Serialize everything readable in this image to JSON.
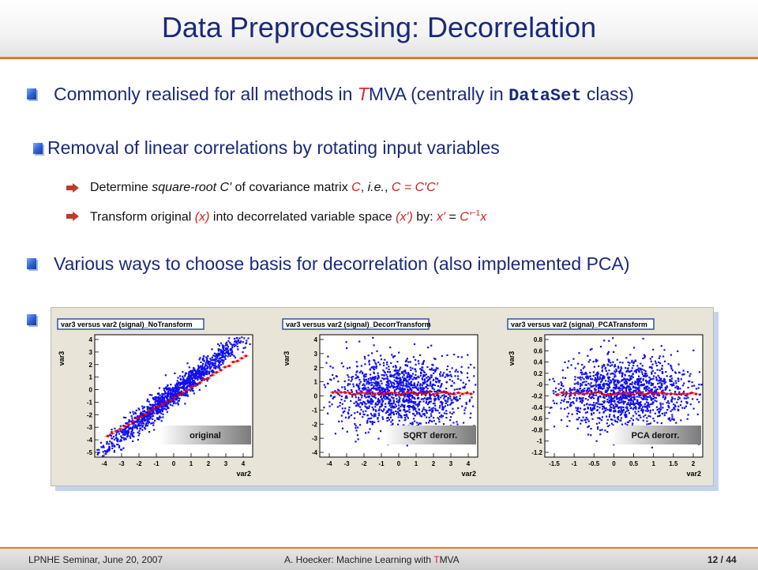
{
  "title": "Data Preprocessing: Decorrelation",
  "bullets": {
    "b1": {
      "pre": "Commonly realised for all methods in ",
      "t_red": "T",
      "mid": "MVA (centrally in ",
      "code": "DataSet",
      "post": " class)"
    },
    "b2": "Removal of linear correlations by rotating input variables",
    "sub1": {
      "a": "Determine ",
      "b": "square-root C′",
      "c": " of covariance matrix ",
      "d": "C",
      "e": ", ",
      "f": "i.e.",
      "g": ", ",
      "h": "C = C′C′"
    },
    "sub2": {
      "a": "Transform original ",
      "b": "(x)",
      "c": " into decorrelated variable space ",
      "d": "(x′)",
      "e": " by: ",
      "f": "x′",
      "g": " = ",
      "h": "C′",
      "sup": "−1",
      "i": "x"
    },
    "b3": "Various ways to choose basis for decorrelation (also implemented PCA)"
  },
  "plots": [
    {
      "title": "var3 versus var2 (signal)_NoTransform",
      "ylabel": "var3",
      "xlabel": "var2",
      "badge": "original",
      "yticks": [
        "4",
        "3",
        "2",
        "1",
        "0",
        "-1",
        "-2",
        "-3",
        "-4",
        "-5"
      ],
      "xticks": [
        "-4",
        "-3",
        "-2",
        "-1",
        "0",
        "1",
        "2",
        "3",
        "4"
      ],
      "kind": "correlated"
    },
    {
      "title": "var3 versus var2 (signal)_DecorrTransform",
      "ylabel": "var3",
      "xlabel": "var2",
      "badge": "SQRT derorr.",
      "yticks": [
        "4",
        "3",
        "2",
        "1",
        "0",
        "-1",
        "-2",
        "-3",
        "-4"
      ],
      "xticks": [
        "-4",
        "-3",
        "-2",
        "-1",
        "0",
        "1",
        "2",
        "3",
        "4"
      ],
      "kind": "decorrelated"
    },
    {
      "title": "var3 versus var2 (signal)_PCATransform",
      "ylabel": "var3",
      "xlabel": "var2",
      "badge": "PCA derorr.",
      "yticks": [
        "0.8",
        "0.6",
        "0.4",
        "0.2",
        "-0",
        "-0.2",
        "-0.4",
        "-0.6",
        "-0.8",
        "-1",
        "-1.2"
      ],
      "xticks": [
        "-1.5",
        "-1",
        "-0.5",
        "0",
        "0.5",
        "1",
        "1.5",
        "2"
      ],
      "kind": "decorrelated"
    }
  ],
  "footer": {
    "left": "LPNHE Seminar, June 20, 2007",
    "center_pre": "A. Hoecker: Machine Learning with ",
    "center_red": "T",
    "center_post": "MVA",
    "page": "12 / 44"
  },
  "colors": {
    "title": "#1a2a7a",
    "accent": "#e07a2a",
    "red": "#e0262a",
    "scatter": "#1010ee",
    "profile": "#ee0000"
  }
}
